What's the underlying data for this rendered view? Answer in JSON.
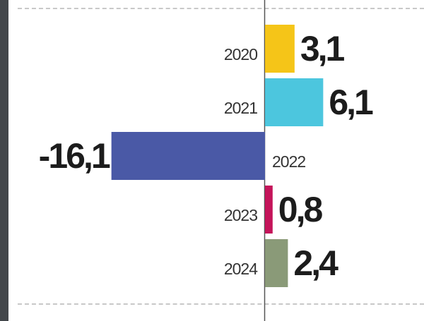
{
  "chart_data": {
    "type": "bar",
    "orientation": "horizontal",
    "categories": [
      "2020",
      "2021",
      "2022",
      "2023",
      "2024"
    ],
    "values": [
      3.1,
      6.1,
      -16.1,
      0.8,
      2.4
    ],
    "value_labels": [
      "3,1",
      "6,1",
      "-16,1",
      "0,8",
      "2,4"
    ],
    "colors": [
      "#f5c518",
      "#4cc6de",
      "#4a59a6",
      "#c4145a",
      "#8a9a78"
    ],
    "title": "",
    "xlabel": "",
    "ylabel": "",
    "xlim": [
      -16.1,
      6.1
    ],
    "grid": false
  }
}
